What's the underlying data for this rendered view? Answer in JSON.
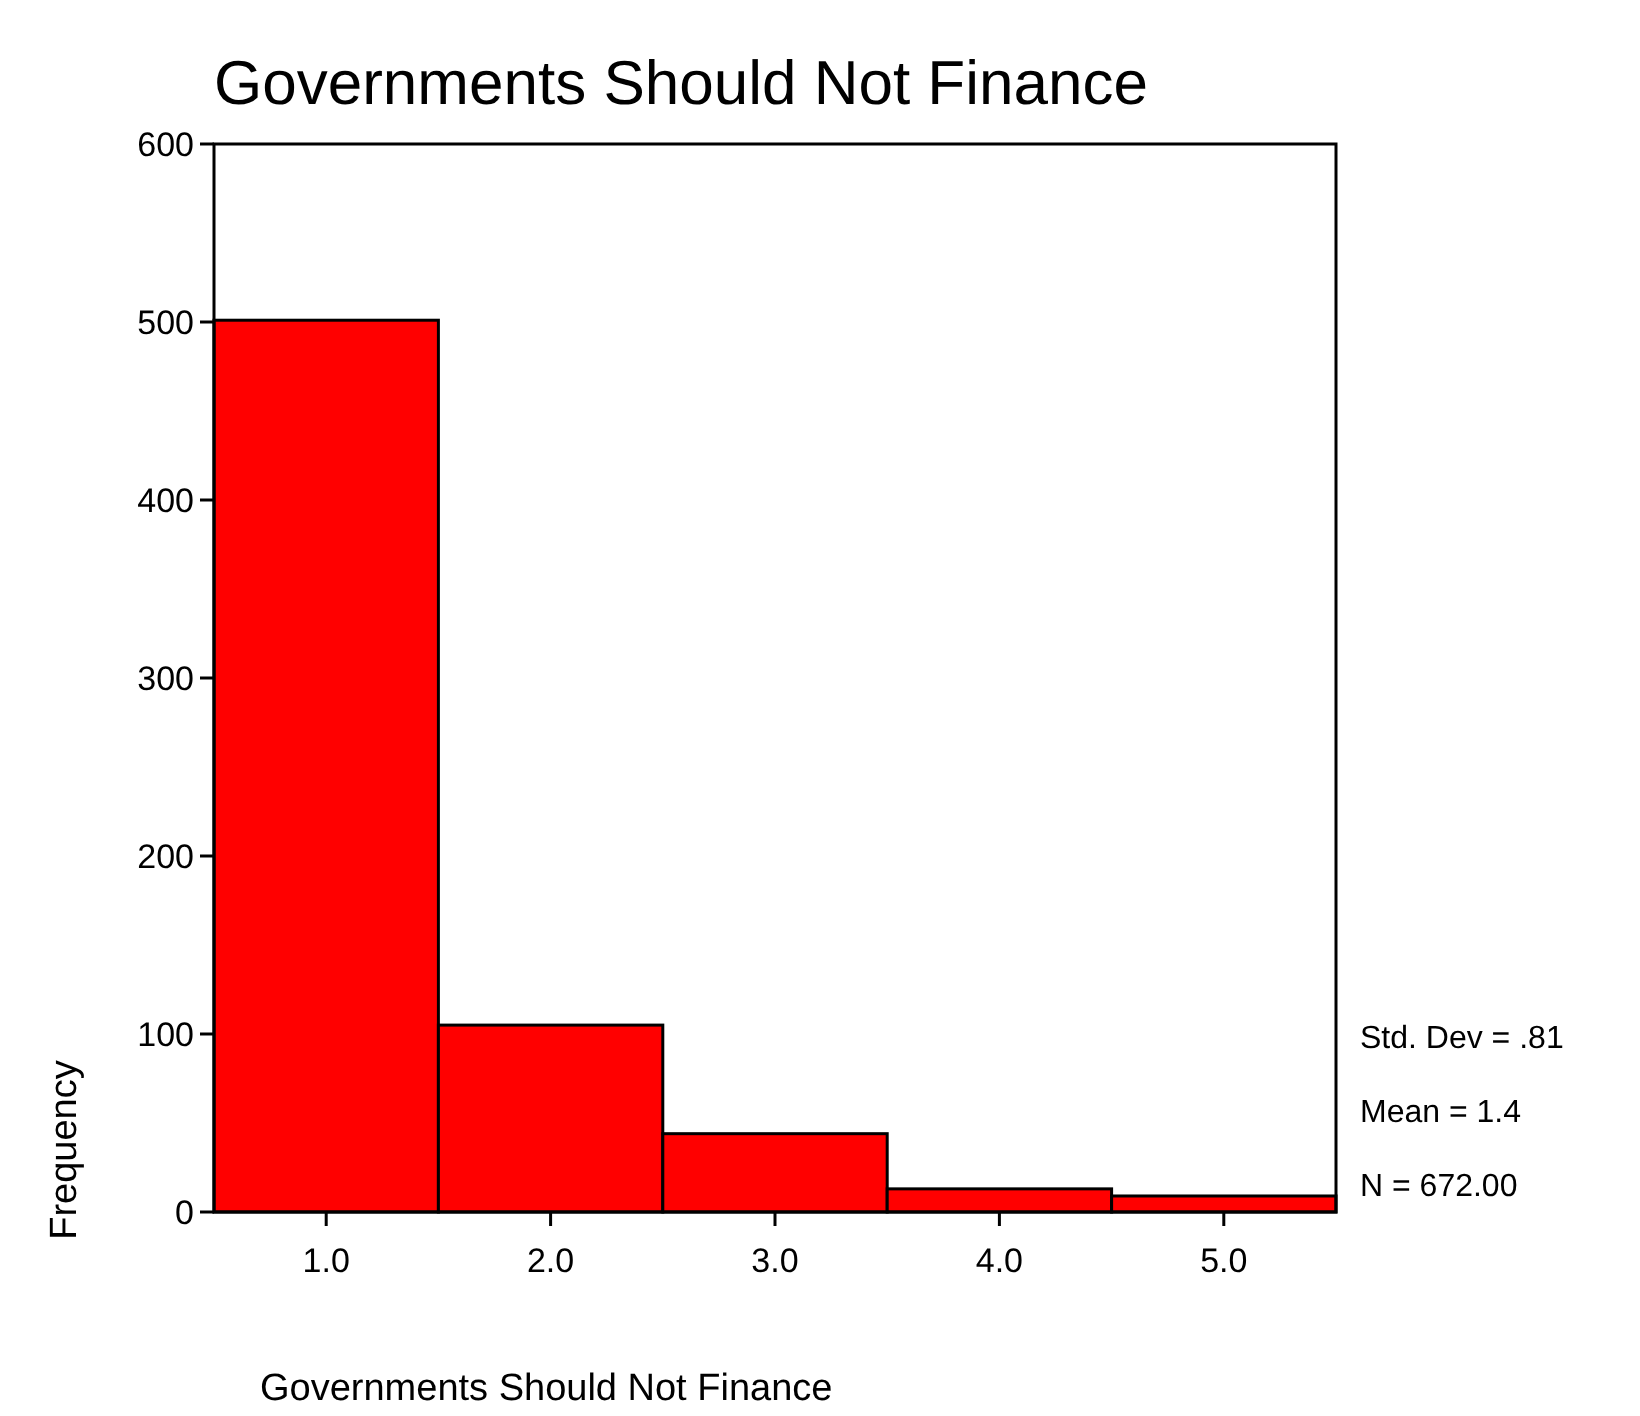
{
  "chart_data": {
    "type": "histogram",
    "title": "Governments Should Not Finance",
    "xlabel": "Governments Should Not Finance",
    "ylabel": "Frequency",
    "bins": [
      0.5,
      1.5,
      2.5,
      3.5,
      4.5,
      5.5
    ],
    "values": [
      501,
      105,
      44,
      13,
      9
    ],
    "color": "#ff0000",
    "xlim": [
      0.5,
      5.5
    ],
    "xticks": [
      {
        "value": 1,
        "label": "1.0"
      },
      {
        "value": 2,
        "label": "2.0"
      },
      {
        "value": 3,
        "label": "3.0"
      },
      {
        "value": 4,
        "label": "4.0"
      },
      {
        "value": 5,
        "label": "5.0"
      }
    ],
    "ylim": [
      0,
      600
    ],
    "yticks": [
      0,
      100,
      200,
      300,
      400,
      500,
      600
    ],
    "grid": false,
    "annotations": [
      "Std. Dev = .81",
      "Mean = 1.4",
      "N = 672.00"
    ]
  }
}
